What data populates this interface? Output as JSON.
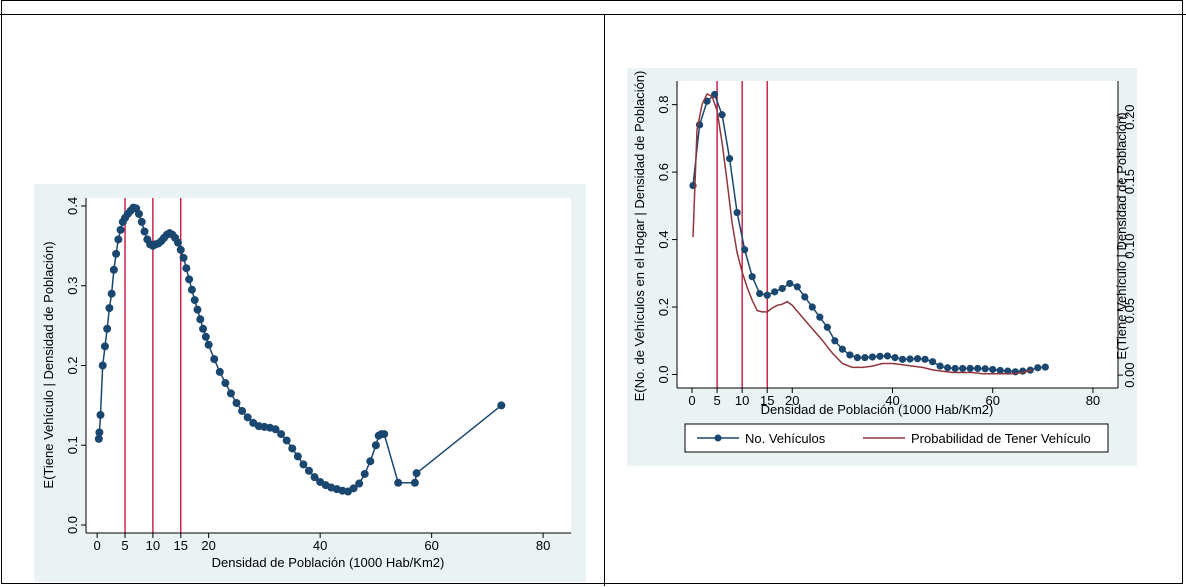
{
  "page": {
    "header_text": ""
  },
  "colors": {
    "panel_bg": "#eaf2f3",
    "plot_bg": "#ffffff",
    "series": "#1a476f",
    "prob_line": "#90353b",
    "vline": "#c10534",
    "axis": "#000000"
  },
  "chart_data": [
    {
      "type": "line",
      "markers": true,
      "title": "",
      "xlabel": "Densidad de Población (1000 Hab/Km2)",
      "ylabel": "E(Tiene Vehículo | Densidad de Población)",
      "xlim": [
        -2,
        85
      ],
      "ylim": [
        -0.01,
        0.41
      ],
      "xticks": [
        0,
        5,
        10,
        15,
        20,
        40,
        60,
        80
      ],
      "xtick_labels": [
        "0",
        "5",
        "10",
        "15",
        "20",
        "40",
        "60",
        "80"
      ],
      "yticks": [
        0,
        0.1,
        0.2,
        0.3,
        0.4
      ],
      "ytick_labels": [
        "0.0",
        "0.1",
        "0.2",
        "0.3",
        "0.4"
      ],
      "vlines": [
        5,
        10,
        15
      ],
      "grid": false,
      "legend": "none",
      "series": [
        {
          "x": [
            0.3,
            0.4,
            0.6,
            1.0,
            1.4,
            1.8,
            2.2,
            2.6,
            3.0,
            3.4,
            3.8,
            4.2,
            4.6,
            5.0,
            5.5,
            6.0,
            6.5,
            7.0,
            7.5,
            8.0,
            8.5,
            9.0,
            9.5,
            10.0,
            10.5,
            11.0,
            11.5,
            12.0,
            12.5,
            13.0,
            13.5,
            14.0,
            14.5,
            15.0,
            15.5,
            16.0,
            16.5,
            17.0,
            17.5,
            18.0,
            18.5,
            19.0,
            19.5,
            20.0,
            21.0,
            22.0,
            23.0,
            24.0,
            25.0,
            26.0,
            27.0,
            28.0,
            29.0,
            30.0,
            31.0,
            32.0,
            33.0,
            34.0,
            35.0,
            36.0,
            37.0,
            38.0,
            39.0,
            40.0,
            41.0,
            42.0,
            43.0,
            44.0,
            45.0,
            46.0,
            47.0,
            48.0,
            49.0,
            50.0,
            50.5,
            51.0,
            51.5,
            54.0,
            57.0,
            57.3,
            72.5
          ],
          "values": [
            0.108,
            0.116,
            0.138,
            0.2,
            0.224,
            0.246,
            0.272,
            0.29,
            0.32,
            0.34,
            0.358,
            0.37,
            0.38,
            0.385,
            0.39,
            0.394,
            0.398,
            0.397,
            0.39,
            0.38,
            0.368,
            0.358,
            0.352,
            0.35,
            0.352,
            0.353,
            0.356,
            0.36,
            0.364,
            0.366,
            0.364,
            0.36,
            0.354,
            0.345,
            0.335,
            0.322,
            0.308,
            0.295,
            0.282,
            0.27,
            0.258,
            0.246,
            0.236,
            0.226,
            0.208,
            0.192,
            0.178,
            0.165,
            0.153,
            0.143,
            0.135,
            0.128,
            0.124,
            0.123,
            0.122,
            0.12,
            0.114,
            0.106,
            0.096,
            0.086,
            0.076,
            0.068,
            0.06,
            0.054,
            0.05,
            0.047,
            0.045,
            0.043,
            0.042,
            0.046,
            0.052,
            0.064,
            0.08,
            0.1,
            0.112,
            0.114,
            0.114,
            0.053,
            0.053,
            0.065,
            0.15
          ]
        }
      ]
    },
    {
      "type": "line",
      "markers": true,
      "title": "",
      "xlabel": "Densidad de Población (1000 Hab/Km2)",
      "ylabel": "E(No. de Vehículos en el Hogar | Densidad de Población)",
      "y2label": "E(Tiene Vehículo | Densidad de Población)",
      "xlim": [
        -3,
        85
      ],
      "ylim": [
        -0.04,
        0.87
      ],
      "y2lim": [
        -0.01,
        0.228
      ],
      "xticks": [
        0,
        5,
        10,
        15,
        20,
        40,
        60,
        80
      ],
      "xtick_labels": [
        "0",
        "5",
        "10",
        "15",
        "20",
        "40",
        "60",
        "80"
      ],
      "yticks": [
        0,
        0.2,
        0.4,
        0.6,
        0.8
      ],
      "ytick_labels": [
        "0.0",
        "0.2",
        "0.4",
        "0.6",
        "0.8"
      ],
      "y2ticks": [
        0,
        0.05,
        0.1,
        0.15,
        0.2
      ],
      "y2tick_labels": [
        "0.00",
        "0.05",
        "0.10",
        "0.15",
        "0.20"
      ],
      "vlines": [
        5,
        10,
        15
      ],
      "grid": false,
      "legend": "bottom",
      "series": [
        {
          "name": "No. Vehículos",
          "axis": "left",
          "markers": true,
          "x": [
            0.2,
            1.5,
            3.0,
            4.5,
            6.0,
            7.5,
            9.0,
            10.5,
            12.0,
            13.5,
            15.0,
            16.5,
            18.0,
            19.5,
            21.0,
            22.5,
            24.0,
            25.5,
            27.0,
            28.5,
            30.0,
            31.5,
            33.0,
            34.5,
            36.0,
            37.5,
            39.0,
            40.5,
            42.0,
            43.5,
            45.0,
            46.5,
            48.0,
            49.5,
            51.0,
            52.5,
            54.0,
            55.5,
            57.0,
            58.5,
            60.0,
            61.5,
            63.0,
            64.5,
            66.0,
            67.5,
            69.0,
            70.5
          ],
          "values": [
            0.56,
            0.74,
            0.81,
            0.83,
            0.77,
            0.64,
            0.48,
            0.37,
            0.29,
            0.24,
            0.235,
            0.245,
            0.255,
            0.27,
            0.26,
            0.23,
            0.2,
            0.17,
            0.14,
            0.1,
            0.075,
            0.058,
            0.05,
            0.05,
            0.052,
            0.054,
            0.055,
            0.05,
            0.045,
            0.046,
            0.047,
            0.045,
            0.038,
            0.025,
            0.02,
            0.018,
            0.018,
            0.018,
            0.018,
            0.017,
            0.015,
            0.012,
            0.01,
            0.008,
            0.01,
            0.013,
            0.02,
            0.022
          ]
        },
        {
          "name": "Probabilidad de Tener Vehículo",
          "axis": "right",
          "markers": false,
          "x": [
            0.2,
            1.0,
            2.0,
            3.0,
            4.0,
            5.0,
            6.0,
            7.0,
            8.0,
            9.0,
            10.0,
            11.0,
            12.0,
            13.0,
            14.0,
            15.0,
            16.0,
            17.0,
            18.0,
            19.0,
            20.0,
            22.0,
            24.0,
            26.0,
            28.0,
            30.0,
            32.0,
            34.0,
            36.0,
            38.0,
            40.0,
            42.0,
            44.0,
            46.0,
            48.0,
            50.0,
            52.0,
            54.0,
            56.0,
            58.0,
            60.0,
            62.0,
            64.0,
            66.0,
            68.0
          ],
          "values": [
            0.107,
            0.19,
            0.21,
            0.218,
            0.216,
            0.205,
            0.18,
            0.15,
            0.118,
            0.095,
            0.08,
            0.068,
            0.058,
            0.05,
            0.049,
            0.049,
            0.052,
            0.054,
            0.055,
            0.057,
            0.054,
            0.045,
            0.036,
            0.027,
            0.017,
            0.009,
            0.006,
            0.006,
            0.007,
            0.009,
            0.009,
            0.008,
            0.007,
            0.006,
            0.004,
            0.003,
            0.002,
            0.002,
            0.002,
            0.001,
            0.001,
            0.001,
            0.001,
            0.002,
            0.004
          ]
        }
      ]
    }
  ]
}
